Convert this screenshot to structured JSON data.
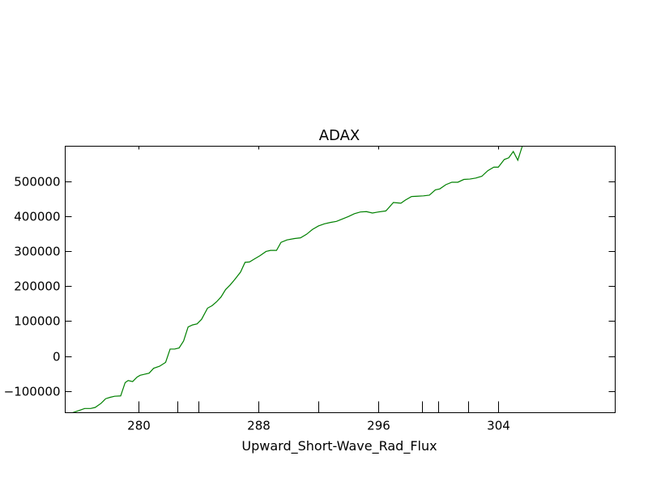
{
  "chart_data": {
    "type": "line",
    "title": "ADAX",
    "xlabel": "Upward_Short-Wave_Rad_Flux",
    "ylabel": "",
    "xlim": [
      275.1,
      311.8
    ],
    "ylim": [
      -162000,
      600000
    ],
    "xticks": [
      280,
      288,
      296,
      304
    ],
    "xtick_labels": [
      "280",
      "288",
      "296",
      "304"
    ],
    "yticks": [
      -100000,
      0,
      100000,
      200000,
      300000,
      400000,
      500000
    ],
    "ytick_labels": [
      "−100000",
      "0",
      "100000",
      "200000",
      "300000",
      "400000",
      "500000"
    ],
    "line_color": "#008000",
    "grid": false,
    "legend": "none",
    "series": [
      {
        "x": [
          275.6,
          276.0,
          276.4,
          276.8,
          277.1,
          277.5,
          277.8,
          278.1,
          278.4,
          278.8,
          279.1,
          279.3,
          279.6,
          279.9,
          280.1,
          280.3,
          280.7,
          281.0,
          281.4,
          281.8,
          282.1,
          282.4,
          282.7,
          283.0,
          283.3,
          283.6,
          283.9,
          284.2,
          284.6,
          284.9,
          285.2,
          285.5,
          285.8,
          286.1,
          286.4,
          286.8,
          287.1,
          287.4,
          287.7,
          288.1,
          288.5,
          288.8,
          289.2,
          289.5,
          289.9,
          290.4,
          290.8,
          291.2,
          291.6,
          292.0,
          292.4,
          292.8,
          293.2,
          293.6,
          294.0,
          294.4,
          294.8,
          295.2,
          295.6,
          296.0,
          296.5,
          297.0,
          297.5,
          297.8,
          298.2,
          298.6,
          299.0,
          299.4,
          299.8,
          300.1,
          300.5,
          300.9,
          301.3,
          301.7,
          302.1,
          302.5,
          302.9,
          303.3,
          303.7,
          304.0,
          304.4,
          304.7,
          305.0,
          305.3,
          305.6
        ],
        "y": [
          -162000,
          -156000,
          -150000,
          -150000,
          -147000,
          -135000,
          -122000,
          -118000,
          -115000,
          -114000,
          -76000,
          -70000,
          -73000,
          -60000,
          -55000,
          -53000,
          -49000,
          -35000,
          -29000,
          -18000,
          20000,
          20000,
          23000,
          43000,
          83000,
          89000,
          92000,
          105000,
          137000,
          144000,
          155000,
          169000,
          190000,
          203000,
          218000,
          240000,
          268000,
          269000,
          277000,
          287000,
          299000,
          302000,
          302000,
          325000,
          332000,
          336000,
          338000,
          348000,
          362000,
          372000,
          378000,
          382000,
          385000,
          392000,
          399000,
          407000,
          412000,
          413000,
          409000,
          412000,
          415000,
          439000,
          437000,
          446000,
          456000,
          457000,
          458000,
          460000,
          475000,
          478000,
          490000,
          497000,
          497000,
          505000,
          506000,
          509000,
          514000,
          530000,
          540000,
          540000,
          562000,
          567000,
          585000,
          560000,
          600000
        ]
      }
    ]
  }
}
